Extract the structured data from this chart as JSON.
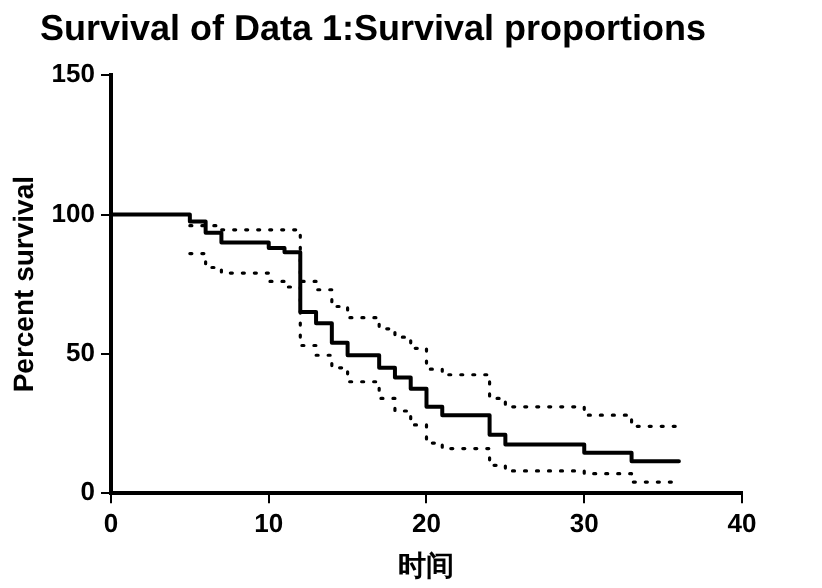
{
  "chart_data": {
    "type": "step",
    "title": "Survival of Data 1:Survival proportions",
    "xlabel": "时间",
    "ylabel": "Percent survival",
    "xlim": [
      0,
      40
    ],
    "xticks": [
      0,
      10,
      20,
      30,
      40
    ],
    "ylim": [
      0,
      150
    ],
    "yticks": [
      0,
      50,
      100,
      150
    ],
    "grid": false,
    "legend": false,
    "marker": "none",
    "series": [
      {
        "color": "#000000",
        "line_style": "solid",
        "x": [
          0,
          5,
          6,
          7,
          10,
          11,
          12,
          13,
          14,
          15,
          17,
          18,
          19,
          20,
          21,
          24,
          25,
          30,
          33,
          36
        ],
        "values": [
          100,
          97.5,
          93.5,
          90,
          88,
          86.5,
          65,
          61,
          54,
          49.5,
          45,
          41.5,
          37.5,
          31,
          28,
          21,
          17.5,
          14.5,
          11.5,
          11.5
        ]
      },
      {
        "color": "#000000",
        "line_style": "dotted",
        "x": [
          5,
          6,
          7,
          10,
          11,
          12,
          13,
          14,
          15,
          17,
          18,
          19,
          20,
          21,
          24,
          25,
          30,
          33,
          36
        ],
        "values": [
          96,
          96,
          94.5,
          94.5,
          94.5,
          76,
          73,
          67,
          63,
          59,
          56,
          52,
          44.5,
          42.5,
          34,
          31,
          28,
          24,
          24
        ]
      },
      {
        "color": "#000000",
        "line_style": "dotted",
        "x": [
          5,
          6,
          7,
          10,
          11,
          12,
          13,
          14,
          15,
          17,
          18,
          19,
          20,
          21,
          24,
          25,
          30,
          33,
          36
        ],
        "values": [
          86,
          81,
          79,
          76,
          74,
          53,
          49.5,
          45,
          40,
          34,
          29.5,
          24.5,
          18,
          16,
          10,
          8,
          7,
          4,
          4
        ]
      }
    ]
  }
}
